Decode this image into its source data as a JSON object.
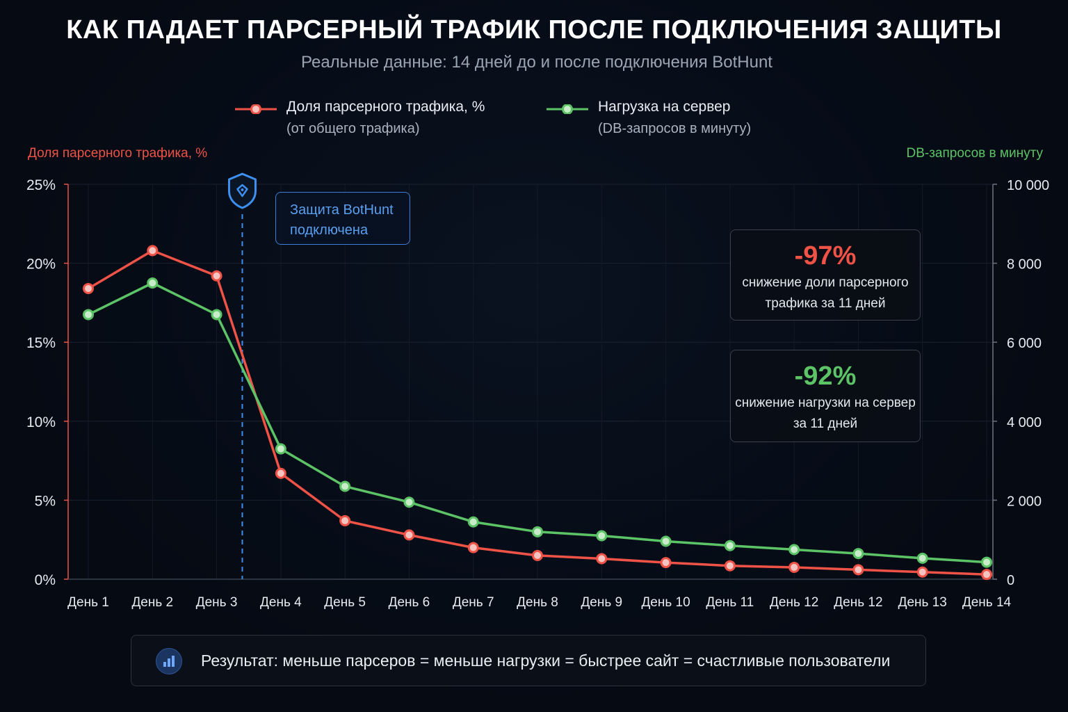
{
  "header": {
    "title": "КАК ПАДАЕТ ПАРСЕРНЫЙ ТРАФИК ПОСЛЕ ПОДКЛЮЧЕНИЯ ЗАЩИТЫ",
    "subtitle": "Реальные данные: 14 дней до и после подключения BotHunt"
  },
  "legend": [
    {
      "label": "Доля парсерного трафика, %",
      "sub": "(от общего трафика)",
      "color": "#ef5246"
    },
    {
      "label": "Нагрузка на сервер",
      "sub": "(DB-запросов в минуту)",
      "color": "#5cc466"
    }
  ],
  "annotation": {
    "protection_line1": "Защита BotHunt",
    "protection_line2": "подключена",
    "icon": "shield-icon",
    "color": "#3d8ff0"
  },
  "callouts": [
    {
      "value": "-97%",
      "line1": "снижение доли парсерного",
      "line2": "трафика за 11 дней",
      "color": "#ef5246"
    },
    {
      "value": "-92%",
      "line1": "снижение нагрузки на сервер",
      "line2": "за 11 дней",
      "color": "#5cc466"
    }
  ],
  "result": {
    "text": "Результат: меньше парсеров = меньше нагрузки = быстрее сайт = счастливые пользователи",
    "icon": "bar-chart-icon"
  },
  "chart_data": {
    "type": "line",
    "categories": [
      "День 1",
      "День 2",
      "День 3",
      "День 4",
      "День 5",
      "День 6",
      "День 7",
      "День 8",
      "День 9",
      "День 10",
      "День 11",
      "День 12",
      "День 12",
      "День 13",
      "День 14"
    ],
    "y_left": {
      "label": "Доля парсерного трафика, %",
      "ticks": [
        "0%",
        "5%",
        "10%",
        "15%",
        "20%",
        "25%"
      ],
      "range": [
        0,
        25
      ]
    },
    "y_right": {
      "label": "DB-запросов в минуту",
      "ticks": [
        "0",
        "2 000",
        "4 000",
        "6 000",
        "8 000",
        "10 000"
      ],
      "range": [
        0,
        10000
      ]
    },
    "series": [
      {
        "name": "Доля парсерного трафика, %",
        "axis": "left",
        "color": "#ef5246",
        "values": [
          18.4,
          20.8,
          19.2,
          6.7,
          3.7,
          2.8,
          2.0,
          1.5,
          1.3,
          1.05,
          0.85,
          0.75,
          0.6,
          0.45,
          0.3
        ]
      },
      {
        "name": "Нагрузка на сервер",
        "axis": "right",
        "color": "#5cc466",
        "values": [
          6700,
          7500,
          6700,
          3300,
          2350,
          1950,
          1450,
          1200,
          1100,
          960,
          850,
          750,
          650,
          530,
          430
        ]
      }
    ],
    "protection_day": 3.4,
    "grid": true
  }
}
